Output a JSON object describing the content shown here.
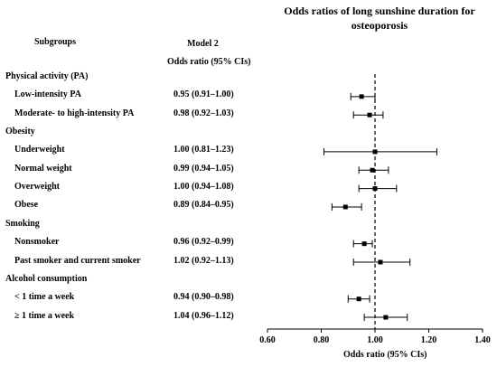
{
  "chart_data": {
    "type": "forest",
    "title": "Odds ratios of long sunshine duration for osteoporosis",
    "column_headers": {
      "subgroups": "Subgroups",
      "model": "Model 2",
      "estimate": "Odds ratio (95% CIs)"
    },
    "xlabel": "Odds ratio (95% CIs)",
    "xlim": [
      0.6,
      1.4
    ],
    "xticks": [
      "0.60",
      "0.80",
      "1.00",
      "1.20",
      "1.40"
    ],
    "reference_line": 1.0,
    "rows": [
      {
        "kind": "group",
        "label": "Physical activity (PA)"
      },
      {
        "kind": "item",
        "label": "Low-intensity PA",
        "text": "0.95 (0.91–1.00)",
        "or": 0.95,
        "lo": 0.91,
        "hi": 1.0
      },
      {
        "kind": "item",
        "label": "Moderate- to high-intensity PA",
        "text": "0.98 (0.92–1.03)",
        "or": 0.98,
        "lo": 0.92,
        "hi": 1.03
      },
      {
        "kind": "group",
        "label": "Obesity"
      },
      {
        "kind": "item",
        "label": "Underweight",
        "text": "1.00 (0.81–1.23)",
        "or": 1.0,
        "lo": 0.81,
        "hi": 1.23
      },
      {
        "kind": "item",
        "label": "Normal weight",
        "text": "0.99 (0.94–1.05)",
        "or": 0.99,
        "lo": 0.94,
        "hi": 1.05
      },
      {
        "kind": "item",
        "label": "Overweight",
        "text": "1.00 (0.94–1.08)",
        "or": 1.0,
        "lo": 0.94,
        "hi": 1.08
      },
      {
        "kind": "item",
        "label": "Obese",
        "text": "0.89 (0.84–0.95)",
        "or": 0.89,
        "lo": 0.84,
        "hi": 0.95
      },
      {
        "kind": "group",
        "label": "Smoking"
      },
      {
        "kind": "item",
        "label": "Nonsmoker",
        "text": "0.96 (0.92–0.99)",
        "or": 0.96,
        "lo": 0.92,
        "hi": 0.99
      },
      {
        "kind": "item",
        "label": "Past smoker and current smoker",
        "text": "1.02 (0.92–1.13)",
        "or": 1.02,
        "lo": 0.92,
        "hi": 1.13
      },
      {
        "kind": "group",
        "label": "Alcohol consumption"
      },
      {
        "kind": "item",
        "label": "< 1 time a week",
        "text": "0.94 (0.90–0.98)",
        "or": 0.94,
        "lo": 0.9,
        "hi": 0.98
      },
      {
        "kind": "item",
        "label": "≥ 1 time a week",
        "text": "1.04 (0.96–1.12)",
        "or": 1.04,
        "lo": 0.96,
        "hi": 1.12
      }
    ],
    "colors": {
      "ink": "#000000",
      "background": "#ffffff"
    }
  }
}
